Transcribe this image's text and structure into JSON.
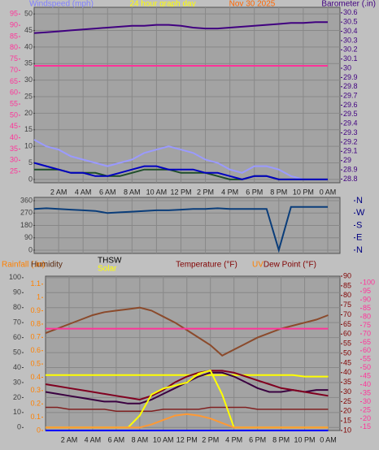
{
  "chart_data": [
    {
      "type": "line",
      "title": "24 hour graph day",
      "subtitle": "Nov 30 2025",
      "x": [
        0,
        1,
        2,
        3,
        4,
        5,
        6,
        7,
        8,
        9,
        10,
        11,
        12,
        13,
        14,
        15,
        16,
        17,
        18,
        19,
        20,
        21,
        22,
        23,
        24
      ],
      "xlim": [
        0,
        25
      ],
      "xticks": [
        {
          "value": 2,
          "label": "2 AM"
        },
        {
          "value": 4,
          "label": "4 AM"
        },
        {
          "value": 6,
          "label": "6 AM"
        },
        {
          "value": 8,
          "label": "8 AM"
        },
        {
          "value": 10,
          "label": "10 AM"
        },
        {
          "value": 12,
          "label": "12 PM"
        },
        {
          "value": 14,
          "label": "2 PM"
        },
        {
          "value": 16,
          "label": "4 PM"
        },
        {
          "value": 18,
          "label": "6 PM"
        },
        {
          "value": 20,
          "label": "8 PM"
        },
        {
          "value": 22,
          "label": "10 PM"
        },
        {
          "value": 24,
          "label": "0 AM"
        }
      ],
      "grid": true,
      "axes": [
        {
          "label": "Windspeed (mph)",
          "label_color": "#8080ff",
          "color": "#404040",
          "lim": [
            -1,
            52
          ],
          "ticks": [
            0,
            5,
            10,
            15,
            20,
            25,
            30,
            35,
            40,
            45,
            50
          ]
        },
        {
          "color": "#ff3399",
          "lim": [
            20,
            98
          ],
          "ticks": [
            25,
            30,
            35,
            40,
            45,
            50,
            55,
            60,
            65,
            70,
            75,
            80,
            85,
            90,
            95
          ]
        },
        {
          "label": "Barometer (.in)",
          "label_color": "#400080",
          "color": "#400080",
          "lim": [
            28.76,
            30.66
          ],
          "ticks": [
            28.8,
            28.9,
            29,
            29.1,
            29.2,
            29.3,
            29.4,
            29.5,
            29.6,
            29.7,
            29.8,
            29.9,
            30,
            30.1,
            30.2,
            30.3,
            30.4,
            30.5,
            30.6
          ]
        }
      ],
      "series": [
        {
          "color": "#9a9aff",
          "axis": 0,
          "width": 2,
          "values": [
            12,
            10,
            9,
            7,
            6,
            5,
            4,
            5,
            6,
            8,
            9,
            10,
            9,
            8,
            6,
            5,
            3,
            2,
            4,
            4,
            3,
            1,
            0,
            0,
            0
          ]
        },
        {
          "color": "#1f4e2a",
          "axis": 0,
          "width": 2,
          "values": [
            3,
            3,
            3,
            2,
            2,
            2,
            1,
            1,
            2,
            3,
            3,
            3,
            2,
            2,
            2,
            1,
            0,
            0,
            1,
            1,
            0,
            0,
            0,
            0,
            0
          ]
        },
        {
          "color": "#0000c0",
          "axis": 0,
          "width": 2,
          "values": [
            5,
            4,
            3,
            2,
            2,
            1,
            1,
            2,
            3,
            4,
            4,
            3,
            3,
            3,
            2,
            2,
            1,
            0,
            1,
            1,
            0,
            0,
            0,
            0,
            0
          ]
        },
        {
          "color": "#ff3399",
          "axis": 1,
          "width": 2,
          "values": [
            72,
            72,
            72,
            72,
            72,
            72,
            72,
            72,
            72,
            72,
            72,
            72,
            72,
            72,
            72,
            72,
            72,
            72,
            72,
            72,
            72,
            72,
            72,
            72,
            72
          ]
        },
        {
          "color": "#400080",
          "axis": 2,
          "width": 2,
          "values": [
            30.38,
            30.39,
            30.4,
            30.41,
            30.42,
            30.43,
            30.44,
            30.45,
            30.46,
            30.46,
            30.47,
            30.47,
            30.46,
            30.44,
            30.43,
            30.43,
            30.44,
            30.45,
            30.46,
            30.47,
            30.48,
            30.49,
            30.49,
            30.5,
            30.5
          ]
        }
      ]
    },
    {
      "type": "line",
      "x": [
        0,
        1,
        2,
        3,
        4,
        5,
        6,
        7,
        8,
        9,
        10,
        11,
        12,
        13,
        14,
        15,
        16,
        17,
        18,
        19,
        20,
        21,
        22,
        23,
        24
      ],
      "xlim": [
        0,
        25
      ],
      "xticks": [
        2,
        4,
        6,
        8,
        10,
        12,
        14,
        16,
        18,
        20,
        22,
        24
      ],
      "grid": true,
      "axes": [
        {
          "color": "#404040",
          "lim": [
            -24,
            384
          ],
          "ticks": [
            0,
            90,
            180,
            270,
            360
          ]
        },
        {
          "color": "#000080",
          "lim": [
            -24,
            384
          ],
          "ticks": [
            {
              "value": 360,
              "label": "N"
            },
            {
              "value": 270,
              "label": "W"
            },
            {
              "value": 180,
              "label": "S"
            },
            {
              "value": 90,
              "label": "E"
            },
            {
              "value": 0,
              "label": "N"
            }
          ]
        }
      ],
      "series": [
        {
          "color": "#0a3d7a",
          "axis": 0,
          "width": 2,
          "values": [
            300,
            305,
            300,
            295,
            290,
            285,
            270,
            275,
            280,
            285,
            290,
            290,
            295,
            300,
            300,
            305,
            300,
            300,
            300,
            300,
            0,
            315,
            315,
            315,
            315
          ]
        }
      ]
    },
    {
      "type": "line",
      "x": [
        0,
        1,
        2,
        3,
        4,
        5,
        6,
        7,
        8,
        9,
        10,
        11,
        12,
        13,
        14,
        15,
        16,
        17,
        18,
        19,
        20,
        21,
        22,
        23,
        24
      ],
      "xlim": [
        0,
        25
      ],
      "xticks": [
        {
          "value": 2,
          "label": "2 AM"
        },
        {
          "value": 4,
          "label": "4 AM"
        },
        {
          "value": 6,
          "label": "6 AM"
        },
        {
          "value": 8,
          "label": "8 AM"
        },
        {
          "value": 10,
          "label": "10 AM"
        },
        {
          "value": 12,
          "label": "12 PM"
        },
        {
          "value": 14,
          "label": "2 PM"
        },
        {
          "value": 16,
          "label": "4 PM"
        },
        {
          "value": 18,
          "label": "6 PM"
        },
        {
          "value": 20,
          "label": "8 PM"
        },
        {
          "value": 22,
          "label": "10 PM"
        },
        {
          "value": 24,
          "label": "0 AM"
        }
      ],
      "grid": true,
      "axes": [
        {
          "color": "#404040",
          "lim": [
            -2,
            101
          ],
          "ticks": [
            0,
            10,
            20,
            30,
            40,
            50,
            60,
            70,
            80,
            90,
            100
          ]
        },
        {
          "color": "#ff8000",
          "lim": [
            0,
            1.16
          ],
          "ticks": [
            0,
            0.1,
            0.2,
            0.3,
            0.4,
            0.5,
            0.6,
            0.7,
            0.8,
            0.9,
            1,
            1.1
          ]
        },
        {
          "color": "#800000",
          "lim": [
            10,
            90
          ],
          "ticks": [
            10,
            15,
            20,
            25,
            30,
            35,
            40,
            45,
            50,
            55,
            60,
            65,
            70,
            75,
            80,
            85,
            90
          ]
        },
        {
          "color": "#ff3399",
          "lim": [
            13,
            104
          ],
          "ticks": [
            15,
            20,
            25,
            30,
            35,
            40,
            45,
            50,
            55,
            60,
            65,
            70,
            75,
            80,
            85,
            90,
            95,
            100
          ]
        }
      ],
      "series": [
        {
          "name": "Rainfall (.in)",
          "color": "#0000ff",
          "label_color": "#ff8000",
          "axis": 1,
          "width": 2,
          "values": [
            0,
            0,
            0,
            0,
            0,
            0,
            0,
            0,
            0,
            0,
            0,
            0,
            0,
            0,
            0,
            0,
            0,
            0,
            0,
            0,
            0,
            0,
            0,
            0,
            0
          ]
        },
        {
          "name": "Humidity",
          "color": "#8b4a2b",
          "label_color": "#5a2a10",
          "axis": 0,
          "width": 2,
          "values": [
            63,
            66,
            69,
            72,
            75,
            77,
            78,
            79,
            80,
            78,
            74,
            70,
            65,
            60,
            55,
            48,
            52,
            56,
            60,
            63,
            66,
            68,
            70,
            72,
            75
          ]
        },
        {
          "color": "#ff3399",
          "axis": 0,
          "width": 2,
          "values": [
            66,
            66,
            66,
            66,
            66,
            66,
            66,
            66,
            66,
            66,
            66,
            66,
            66,
            66,
            66,
            66,
            66,
            66,
            66,
            66,
            66,
            66,
            66,
            66,
            66
          ]
        },
        {
          "color": "#ffff00",
          "axis": 0,
          "width": 2,
          "values": [
            35,
            35,
            35,
            35,
            35,
            35,
            35,
            35,
            35,
            35,
            35,
            35,
            35,
            35,
            35,
            35,
            35,
            35,
            35,
            35,
            35,
            35,
            34,
            34,
            34
          ]
        },
        {
          "name": "THSW",
          "color": "#3a0040",
          "label_color": "#000000",
          "axis": 2,
          "width": 2,
          "values": [
            30,
            29,
            28,
            27,
            26,
            25,
            25,
            24,
            24,
            26,
            29,
            32,
            35,
            38,
            40,
            40,
            38,
            35,
            32,
            30,
            30,
            31,
            30,
            31,
            31
          ]
        },
        {
          "name": "Dew Point (°F)",
          "color": "#802020",
          "label_color": "#800000",
          "axis": 2,
          "width": 1.5,
          "values": [
            22,
            22,
            21,
            21,
            21,
            21,
            20,
            20,
            20,
            20,
            21,
            21,
            21,
            21,
            22,
            22,
            22,
            22,
            21,
            21,
            21,
            21,
            21,
            21,
            21
          ]
        },
        {
          "name": "Temperature (°F)",
          "color": "#800020",
          "label_color": "#800000",
          "axis": 2,
          "width": 2,
          "values": [
            34,
            33,
            32,
            31,
            30,
            29,
            28,
            27,
            26,
            28,
            31,
            35,
            38,
            40,
            41,
            41,
            40,
            38,
            36,
            34,
            32,
            31,
            30,
            29,
            28
          ]
        },
        {
          "name": "Solar",
          "color": "#ffff00",
          "label_color": "#ffff00",
          "axis": 0,
          "width": 2,
          "values": [
            0,
            0,
            0,
            0,
            0,
            0,
            0,
            0,
            8,
            22,
            26,
            28,
            30,
            36,
            38,
            22,
            0,
            0,
            0,
            0,
            0,
            0,
            0,
            0,
            0
          ]
        },
        {
          "name": "UV",
          "color": "#ff9933",
          "label_color": "#ff8000",
          "axis": 0,
          "width": 2,
          "values": [
            0,
            0,
            0,
            0,
            0,
            0,
            0,
            0,
            0,
            2,
            5,
            8,
            9,
            8,
            6,
            3,
            0,
            0,
            0,
            0,
            0,
            0,
            0,
            0,
            0
          ]
        }
      ]
    }
  ]
}
